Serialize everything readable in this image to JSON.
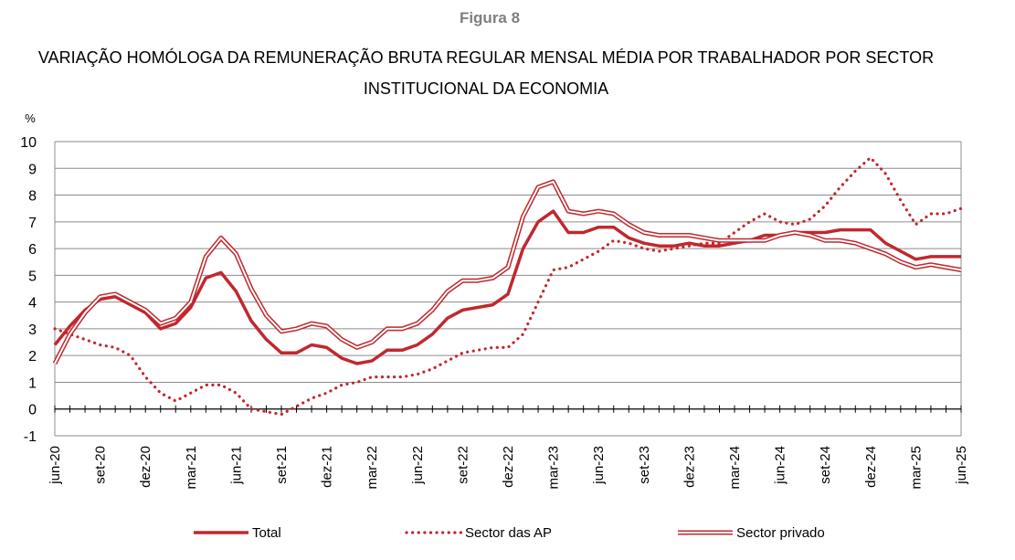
{
  "figure": {
    "label": "Figura 8",
    "title_line1": "VARIAÇÃO HOMÓLOGA DA REMUNERAÇÃO BRUTA REGULAR MENSAL MÉDIA POR TRABALHADOR POR SECTOR",
    "title_line2": "INSTITUCIONAL DA ECONOMIA"
  },
  "chart_data": {
    "type": "line",
    "ylabel": "%",
    "ylim": [
      -1,
      10
    ],
    "yticks": [
      "-1",
      "0",
      "1",
      "2",
      "3",
      "4",
      "5",
      "6",
      "7",
      "8",
      "9",
      "10"
    ],
    "grid": true,
    "legend_position": "bottom",
    "x": [
      "jun-20",
      "jul-20",
      "ago-20",
      "set-20",
      "out-20",
      "nov-20",
      "dez-20",
      "jan-21",
      "fev-21",
      "mar-21",
      "abr-21",
      "mai-21",
      "jun-21",
      "jul-21",
      "ago-21",
      "set-21",
      "out-21",
      "nov-21",
      "dez-21",
      "jan-22",
      "fev-22",
      "mar-22",
      "abr-22",
      "mai-22",
      "jun-22",
      "jul-22",
      "ago-22",
      "set-22",
      "out-22",
      "nov-22",
      "dez-22",
      "jan-23",
      "fev-23",
      "mar-23",
      "abr-23",
      "mai-23",
      "jun-23",
      "jul-23",
      "ago-23",
      "set-23",
      "out-23",
      "nov-23",
      "dez-23",
      "jan-24",
      "fev-24",
      "mar-24",
      "abr-24",
      "mai-24",
      "jun-24",
      "jul-24",
      "ago-24",
      "set-24",
      "out-24",
      "nov-24",
      "dez-24",
      "jan-25",
      "fev-25",
      "mar-25",
      "abr-25",
      "mai-25",
      "jun-25"
    ],
    "x_tick_labels": [
      "jun-20",
      "set-20",
      "dez-20",
      "mar-21",
      "jun-21",
      "set-21",
      "dez-21",
      "mar-22",
      "jun-22",
      "set-22",
      "dez-22",
      "mar-23",
      "jun-23",
      "set-23",
      "dez-23",
      "mar-24",
      "jun-24",
      "set-24",
      "dez-24",
      "mar-25",
      "jun-25"
    ],
    "series": [
      {
        "name": "Total",
        "style": "solid-thick",
        "color": "#c0282e",
        "values": [
          2.4,
          3.1,
          3.7,
          4.1,
          4.2,
          3.9,
          3.6,
          3.0,
          3.2,
          3.8,
          4.9,
          5.1,
          4.4,
          3.3,
          2.6,
          2.1,
          2.1,
          2.4,
          2.3,
          1.9,
          1.7,
          1.8,
          2.2,
          2.2,
          2.4,
          2.8,
          3.4,
          3.7,
          3.8,
          3.9,
          4.3,
          6.0,
          7.0,
          7.4,
          6.6,
          6.6,
          6.8,
          6.8,
          6.4,
          6.2,
          6.1,
          6.1,
          6.2,
          6.1,
          6.1,
          6.2,
          6.3,
          6.5,
          6.5,
          6.6,
          6.6,
          6.6,
          6.7,
          6.7,
          6.7,
          6.2,
          5.9,
          5.6,
          5.7,
          5.7,
          5.7
        ]
      },
      {
        "name": "Sector das AP",
        "style": "dotted",
        "color": "#c0282e",
        "values": [
          3.0,
          2.8,
          2.6,
          2.4,
          2.3,
          2.0,
          1.2,
          0.6,
          0.3,
          0.6,
          0.9,
          0.9,
          0.6,
          0.0,
          -0.1,
          -0.2,
          0.1,
          0.4,
          0.6,
          0.9,
          1.0,
          1.2,
          1.2,
          1.2,
          1.3,
          1.5,
          1.8,
          2.1,
          2.2,
          2.3,
          2.3,
          2.8,
          4.0,
          5.2,
          5.3,
          5.6,
          5.9,
          6.3,
          6.2,
          6.0,
          5.9,
          6.0,
          6.1,
          6.2,
          6.2,
          6.6,
          7.0,
          7.3,
          7.0,
          6.9,
          7.1,
          7.6,
          8.3,
          8.9,
          9.4,
          8.8,
          7.8,
          6.9,
          7.3,
          7.3,
          7.5
        ]
      },
      {
        "name": "Sector privado",
        "style": "double",
        "color": "#c0282e",
        "values": [
          1.7,
          2.8,
          3.6,
          4.2,
          4.3,
          4.0,
          3.7,
          3.2,
          3.4,
          4.0,
          5.7,
          6.4,
          5.8,
          4.5,
          3.5,
          2.9,
          3.0,
          3.2,
          3.1,
          2.6,
          2.3,
          2.5,
          3.0,
          3.0,
          3.2,
          3.7,
          4.4,
          4.8,
          4.8,
          4.9,
          5.3,
          7.2,
          8.3,
          8.5,
          7.4,
          7.3,
          7.4,
          7.3,
          6.9,
          6.6,
          6.5,
          6.5,
          6.5,
          6.4,
          6.3,
          6.3,
          6.3,
          6.3,
          6.5,
          6.6,
          6.5,
          6.3,
          6.3,
          6.2,
          6.0,
          5.8,
          5.5,
          5.3,
          5.4,
          5.3,
          5.2
        ]
      }
    ]
  }
}
